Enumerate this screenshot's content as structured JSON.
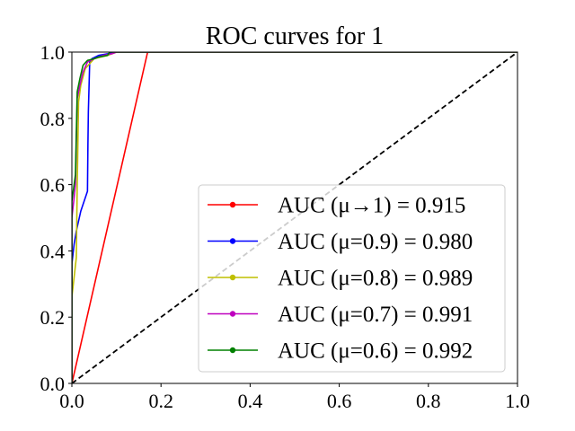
{
  "chart_data": {
    "type": "line",
    "title": "ROC curves for 1",
    "xlabel": "",
    "ylabel": "",
    "xlim": [
      0.0,
      1.0
    ],
    "ylim": [
      0.0,
      1.0
    ],
    "xticks": [
      "0.0",
      "0.2",
      "0.4",
      "0.6",
      "0.8",
      "1.0"
    ],
    "yticks": [
      "0.0",
      "0.2",
      "0.4",
      "0.6",
      "0.8",
      "1.0"
    ],
    "grid": false,
    "legend_position": "center-right",
    "baseline": {
      "style": "dashed",
      "color": "#000000",
      "x": [
        0,
        1
      ],
      "y": [
        0,
        1
      ]
    },
    "series": [
      {
        "name": "AUC (μ→1) = 0.915",
        "color": "#ff0000",
        "x": [
          0.0,
          0.17,
          1.0
        ],
        "y": [
          0.0,
          1.0,
          1.0
        ]
      },
      {
        "name": "AUC (μ=0.9) = 0.980",
        "color": "#0000ff",
        "x": [
          0.0,
          0.0,
          0.005,
          0.01,
          0.02,
          0.035,
          0.036,
          0.037,
          0.04,
          0.045,
          0.06,
          0.08,
          0.1,
          1.0
        ],
        "y": [
          0.0,
          0.36,
          0.42,
          0.46,
          0.52,
          0.58,
          0.72,
          0.82,
          0.97,
          0.98,
          0.99,
          0.995,
          1.0,
          1.0
        ]
      },
      {
        "name": "AUC (μ=0.8) = 0.989",
        "color": "#bfbf00",
        "x": [
          0.0,
          0.0,
          0.005,
          0.01,
          0.012,
          0.015,
          0.02,
          0.03,
          0.05,
          0.08,
          0.1,
          1.0
        ],
        "y": [
          0.0,
          0.26,
          0.32,
          0.38,
          0.6,
          0.85,
          0.9,
          0.95,
          0.98,
          0.99,
          1.0,
          1.0
        ]
      },
      {
        "name": "AUC (μ=0.7) = 0.991",
        "color": "#bf00bf",
        "x": [
          0.0,
          0.0,
          0.005,
          0.008,
          0.012,
          0.018,
          0.025,
          0.035,
          0.05,
          0.07,
          0.09,
          0.1,
          1.0
        ],
        "y": [
          0.0,
          0.5,
          0.56,
          0.6,
          0.86,
          0.9,
          0.94,
          0.97,
          0.98,
          0.99,
          0.995,
          1.0,
          1.0
        ]
      },
      {
        "name": "AUC (μ=0.6) = 0.992",
        "color": "#008000",
        "x": [
          0.0,
          0.0,
          0.005,
          0.008,
          0.012,
          0.018,
          0.025,
          0.035,
          0.05,
          0.06,
          0.08,
          0.085,
          1.0
        ],
        "y": [
          0.0,
          0.55,
          0.6,
          0.63,
          0.88,
          0.92,
          0.96,
          0.975,
          0.98,
          0.985,
          0.99,
          1.0,
          1.0
        ]
      }
    ]
  }
}
